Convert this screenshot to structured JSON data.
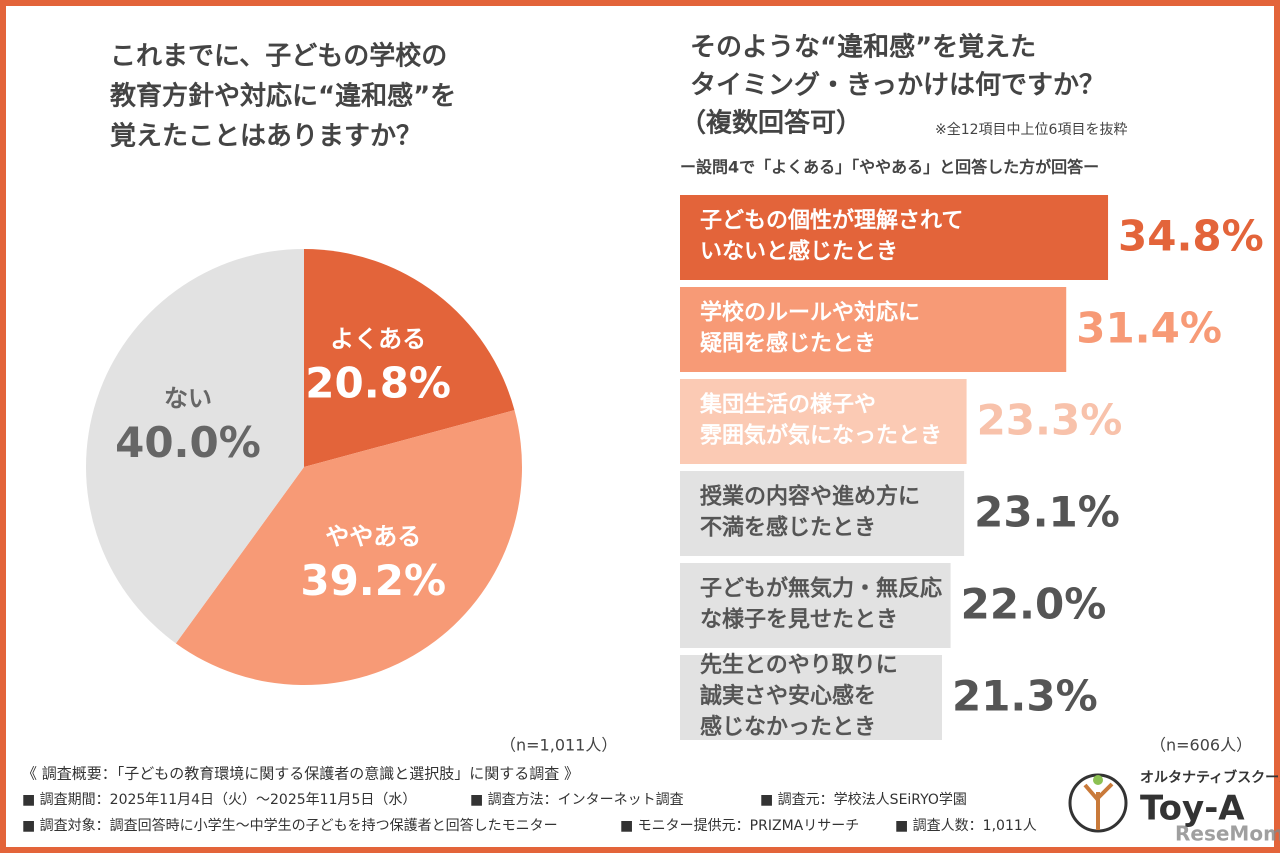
{
  "chart_data": [
    {
      "type": "pie",
      "title": [
        "これまでに、子どもの学校の",
        "教育方針や対応に“違和感”を",
        "覚えたことはありますか？"
      ],
      "categories": [
        "よくある",
        "ややある",
        "ない"
      ],
      "values": [
        20.8,
        39.2,
        40.0
      ],
      "value_labels": [
        "20.8%",
        "39.2%",
        "40.0%"
      ],
      "colors": [
        "#e3643a",
        "#f79a76",
        "#e2e2e2"
      ],
      "label_colors": [
        "#ffffff",
        "#ffffff",
        "#666666"
      ],
      "note": "（n=1,011人）"
    },
    {
      "type": "hbar",
      "title": [
        "そのような“違和感”を覚えた",
        "タイミング・きっかけは何ですか？",
        "（複数回答可）"
      ],
      "annotation": "※全12項目中上位6項目を抜粋",
      "subtitle": "ー設問4で「よくある」「ややある」と回答した方が回答ー",
      "categories": [
        [
          "子どもの個性が理解されて",
          "いないと感じたとき"
        ],
        [
          "学校のルールや対応に",
          "疑問を感じたとき"
        ],
        [
          "集団生活の様子や",
          "雰囲気が気になったとき"
        ],
        [
          "授業の内容や進め方に",
          "不満を感じたとき"
        ],
        [
          "子どもが無気力・無反応",
          "な様子を見せたとき"
        ],
        [
          "先生とのやり取りに",
          "誠実さや安心感を",
          "感じなかったとき"
        ]
      ],
      "values": [
        34.8,
        31.4,
        23.3,
        23.1,
        22.0,
        21.3
      ],
      "value_labels": [
        "34.8%",
        "31.4%",
        "23.3%",
        "23.1%",
        "22.0%",
        "21.3%"
      ],
      "colors": [
        "#e3643a",
        "#f79a76",
        "#fbcab4",
        "#e2e2e2",
        "#e2e2e2",
        "#e2e2e2"
      ],
      "label_colors": [
        "#ffffff",
        "#ffffff",
        "#ffffff",
        "#555555",
        "#555555",
        "#555555"
      ],
      "value_colors": [
        "#e3643a",
        "#f79a76",
        "#f8c2ab",
        "#555555",
        "#555555",
        "#555555"
      ],
      "note": "（n=606人）"
    }
  ],
  "survey": {
    "heading": "《 調査概要：「子どもの教育環境に関する保護者の意識と選択肢」に関する調査 》",
    "items": [
      [
        "■ 調査期間：2025年11月4日（火）～2025年11月5日（水）",
        "■ 調査方法：インターネット調査",
        "■ 調査元：学校法人SEiRYO学園"
      ],
      [
        "■ 調査対象：調査回答時に小学生～中学生の子どもを持つ保護者と回答したモニター",
        "■ モニター提供元：PRIZMAリサーチ",
        "■ 調査人数：1,011人"
      ]
    ]
  },
  "logo": {
    "tagline": "オルタナティブスクール",
    "name": "Toy-A",
    "watermark": "ReseMom"
  }
}
